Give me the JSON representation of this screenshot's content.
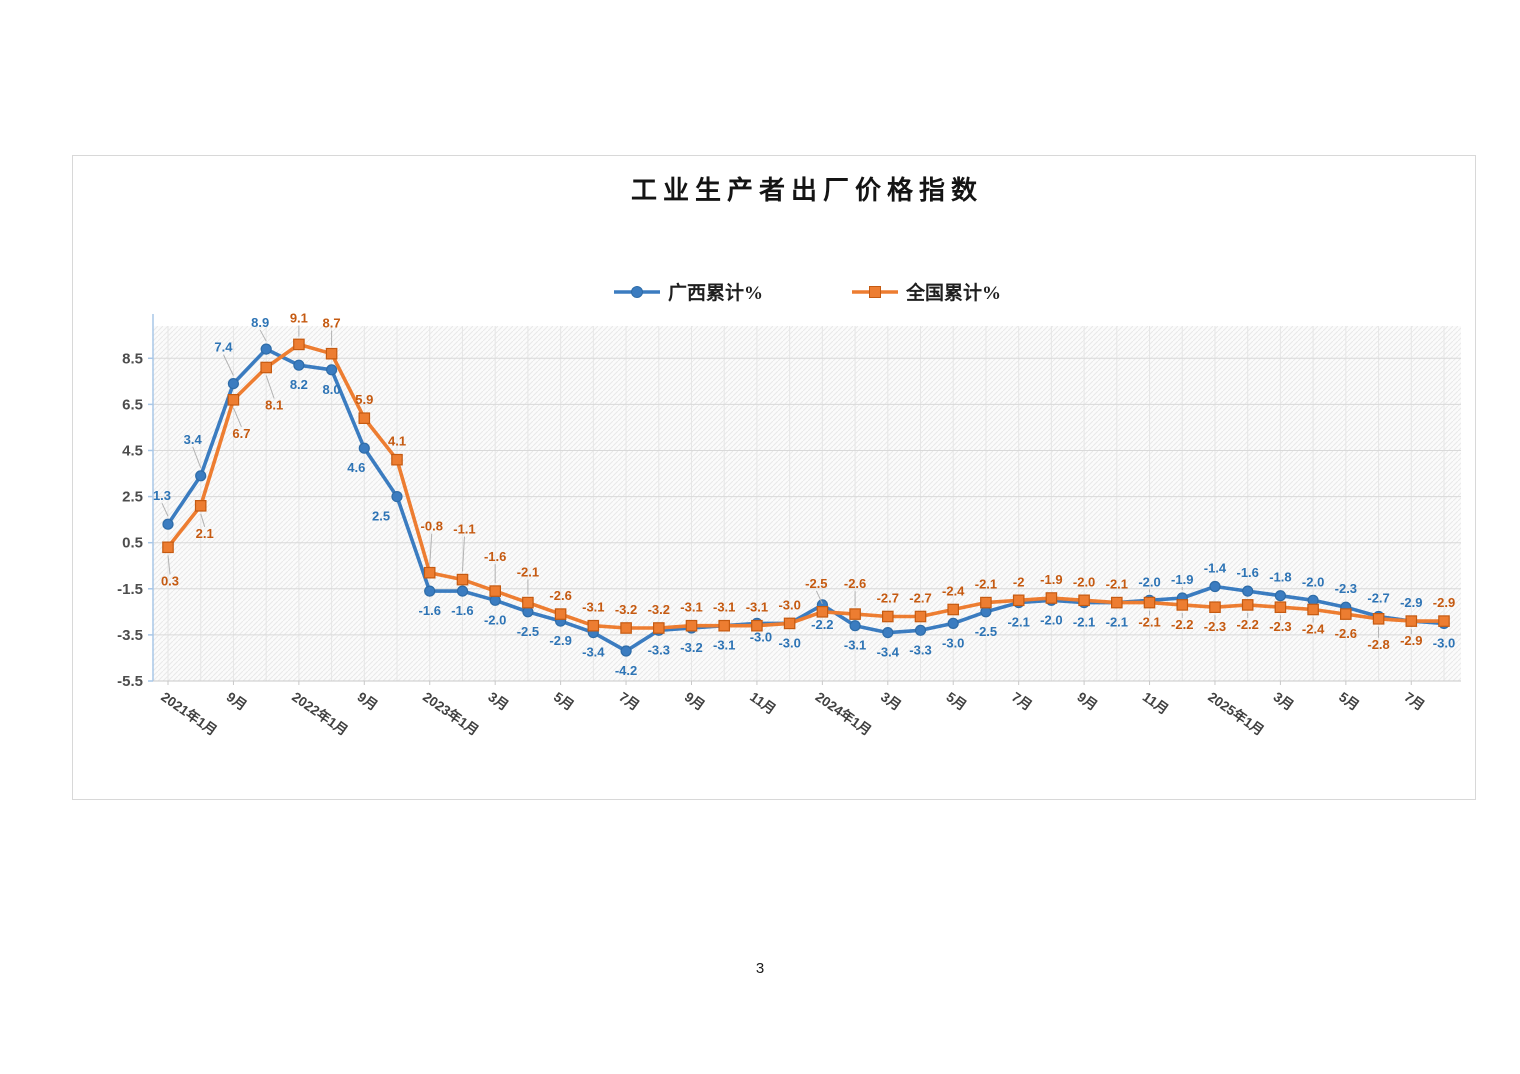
{
  "page": {
    "number": "3"
  },
  "chart": {
    "title": "工业生产者出厂价格指数"
  },
  "chart_data": {
    "type": "line",
    "title": "工业生产者出厂价格指数",
    "ylim": [
      -5.5,
      9.9
    ],
    "y_ticks": [
      8.5,
      6.5,
      4.5,
      2.5,
      0.5,
      -1.5,
      -3.5,
      -5.5
    ],
    "x_tick_labels": {
      "0": "2021年1月",
      "2": "9月",
      "4": "2022年1月",
      "6": "9月",
      "8": "2023年1月",
      "10": "3月",
      "12": "5月",
      "14": "7月",
      "16": "9月",
      "18": "11月",
      "20": "2024年1月",
      "22": "3月",
      "24": "5月",
      "26": "7月",
      "28": "9月",
      "30": "11月",
      "32": "2025年1月",
      "34": "3月",
      "36": "5月",
      "38": "7月"
    },
    "grid": true,
    "legend_position": "top-center",
    "plot_background": "diagonal-hatch",
    "series": [
      {
        "name": "广西累计%",
        "marker": "circle",
        "line_color": "#3b7cc0",
        "marker_fill": "#3b7cc0",
        "marker_stroke": "#2e6ca8",
        "label_color": "#2e74b5",
        "values": [
          1.3,
          3.4,
          7.4,
          8.9,
          8.2,
          8.0,
          4.6,
          2.5,
          -1.6,
          -1.6,
          -2.0,
          -2.5,
          -2.9,
          -3.4,
          -4.2,
          -3.3,
          -3.2,
          -3.1,
          -3.0,
          -3.0,
          -2.2,
          -3.1,
          -3.4,
          -3.3,
          -3.0,
          -2.5,
          -2.1,
          -2.0,
          -2.1,
          -2.1,
          -2.0,
          -1.9,
          -1.4,
          -1.6,
          -1.8,
          -2.0,
          -2.3,
          -2.7,
          -2.9,
          -3.0
        ],
        "labels": [
          "1.3",
          "3.4",
          "7.4",
          "8.9",
          "8.2",
          "8.0",
          "4.6",
          "2.5",
          "-1.6",
          "-1.6",
          "-2.0",
          "-2.5",
          "-2.9",
          "-3.4",
          "-4.2",
          "-3.3",
          "-3.2",
          "-3.1",
          "-3.0",
          "-3.0",
          "-2.2",
          "-3.1",
          "-3.4",
          "-3.3",
          "-3.0",
          "-2.5",
          "-2.1",
          "-2.0",
          "-2.1",
          "-2.1",
          "-2.0",
          "-1.9",
          "-1.4",
          "-1.6",
          "-1.8",
          "-2.0",
          "-2.3",
          "-2.7",
          "-2.9",
          "-3.0"
        ],
        "label_side": "AAAABBBBBBBBBBBBBBBBBBBBBBBBBBAAAAAAAAAB",
        "leader_indices": [
          0,
          1,
          2,
          3,
          30,
          31
        ],
        "label_offsets": {
          "0": [
            -6,
            -10
          ],
          "1": [
            -8,
            -18
          ],
          "2": [
            -10,
            -18
          ],
          "3": [
            -6,
            -8
          ],
          "6": [
            -8,
            0
          ],
          "7": [
            -16,
            0
          ],
          "18": [
            4,
            -6
          ]
        }
      },
      {
        "name": "全国累计%",
        "marker": "square",
        "line_color": "#ed7d31",
        "marker_fill": "#ed7d31",
        "marker_stroke": "#c55a11",
        "label_color": "#c55a11",
        "values": [
          0.3,
          2.1,
          6.7,
          8.1,
          9.1,
          8.7,
          5.9,
          4.1,
          -0.8,
          -1.1,
          -1.6,
          -2.1,
          -2.6,
          -3.1,
          -3.2,
          -3.2,
          -3.1,
          -3.1,
          -3.1,
          -3.0,
          -2.5,
          -2.6,
          -2.7,
          -2.7,
          -2.4,
          -2.1,
          -2.0,
          -1.9,
          -2.0,
          -2.1,
          -2.1,
          -2.2,
          -2.3,
          -2.2,
          -2.3,
          -2.4,
          -2.6,
          -2.8,
          -2.9,
          -2.9
        ],
        "labels": [
          "0.3",
          "2.1",
          "6.7",
          "8.1",
          "9.1",
          "8.7",
          "5.9",
          "4.1",
          "-0.8",
          "-1.1",
          "-1.6",
          "-2.1",
          "-2.6",
          "-3.1",
          "-3.2",
          "-3.2",
          "-3.1",
          "-3.1",
          "-3.1",
          "-3.0",
          "-2.5",
          "-2.6",
          "-2.7",
          "-2.7",
          "-2.4",
          "-2.1",
          "-2",
          "-1.9",
          "-2.0",
          "-2.1",
          "-2.1",
          "-2.2",
          "-2.3",
          "-2.2",
          "-2.3",
          "-2.4",
          "-2.6",
          "-2.8",
          "-2.9",
          "-2.9"
        ],
        "label_side": "BBBBAAAAAAAAAAAAAAAAAAAAAAAAAABBBBBBBBBA",
        "leader_indices": [
          0,
          1,
          2,
          3,
          4,
          5,
          8,
          9,
          10,
          11,
          20,
          21,
          30,
          31,
          32,
          33,
          34,
          35,
          37,
          38
        ],
        "label_offsets": {
          "0": [
            2,
            14
          ],
          "1": [
            4,
            8
          ],
          "2": [
            8,
            14
          ],
          "3": [
            8,
            18
          ],
          "4": [
            0,
            -8
          ],
          "5": [
            0,
            -12
          ],
          "8": [
            2,
            -28
          ],
          "9": [
            2,
            -32
          ],
          "10": [
            0,
            -16
          ],
          "11": [
            0,
            -12
          ],
          "20": [
            -6,
            -10
          ],
          "21": [
            0,
            -12
          ],
          "37": [
            0,
            6
          ]
        }
      }
    ],
    "axis_colors": {
      "y_axis": "#a9c7e7",
      "x_axis": "#c9c9c9",
      "grid_h": "#d9d9d9",
      "grid_v": "#e6e6e6",
      "leader": "#b3b3b3"
    }
  }
}
